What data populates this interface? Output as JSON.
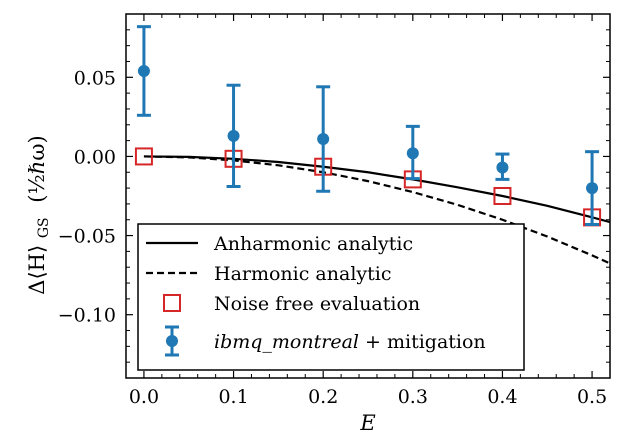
{
  "chart_data": {
    "type": "scatter",
    "xlabel": "E",
    "ylabel_main": "Δ⟨H⟩",
    "ylabel_sub": "GS",
    "ylabel_unit": "(½ℏω)",
    "xlim": [
      -0.02,
      0.52
    ],
    "ylim": [
      -0.14,
      0.09
    ],
    "x_ticks": [
      0.0,
      0.1,
      0.2,
      0.3,
      0.4,
      0.5
    ],
    "x_tick_labels": [
      "0.0",
      "0.1",
      "0.2",
      "0.3",
      "0.4",
      "0.5"
    ],
    "y_ticks": [
      0.05,
      0.0,
      -0.05,
      -0.1
    ],
    "y_tick_labels": [
      "0.05",
      "0.00",
      "−0.05",
      "−0.10"
    ],
    "grid": false,
    "legend_position": "lower-left",
    "series": [
      {
        "name": "Anharmonic analytic",
        "kind": "line",
        "style": "solid",
        "color": "#000000",
        "x": [
          0.0,
          0.05,
          0.1,
          0.15,
          0.2,
          0.25,
          0.3,
          0.35,
          0.4,
          0.45,
          0.5,
          0.52
        ],
        "values": [
          0.0,
          -0.0003,
          -0.0015,
          -0.0035,
          -0.0065,
          -0.01,
          -0.0145,
          -0.0195,
          -0.025,
          -0.0312,
          -0.0385,
          -0.0415
        ]
      },
      {
        "name": "Harmonic analytic",
        "kind": "line",
        "style": "dashed",
        "color": "#000000",
        "x": [
          0.0,
          0.05,
          0.1,
          0.15,
          0.2,
          0.25,
          0.3,
          0.35,
          0.4,
          0.45,
          0.5,
          0.52
        ],
        "values": [
          0.0,
          -0.0006,
          -0.0025,
          -0.0056,
          -0.01,
          -0.0156,
          -0.0225,
          -0.0306,
          -0.04,
          -0.0506,
          -0.0625,
          -0.0676
        ]
      },
      {
        "name": "Noise free evaluation",
        "kind": "markers",
        "marker": "open-square",
        "color": "#d62728",
        "x": [
          0.0,
          0.1,
          0.2,
          0.3,
          0.4,
          0.5
        ],
        "values": [
          0.0,
          -0.0015,
          -0.0065,
          -0.0145,
          -0.025,
          -0.0385
        ]
      },
      {
        "name_italic": "ibmq_montreal",
        "name_suffix": " + mitigation",
        "kind": "errorbar",
        "marker": "filled-circle",
        "color": "#1f77b4",
        "x": [
          0.0,
          0.1,
          0.2,
          0.3,
          0.4,
          0.5
        ],
        "values": [
          0.054,
          0.013,
          0.011,
          0.002,
          -0.007,
          -0.02
        ],
        "err_low": [
          0.028,
          0.032,
          0.033,
          0.016,
          0.0075,
          0.023
        ],
        "err_high": [
          0.028,
          0.032,
          0.033,
          0.017,
          0.0085,
          0.023
        ]
      }
    ]
  }
}
